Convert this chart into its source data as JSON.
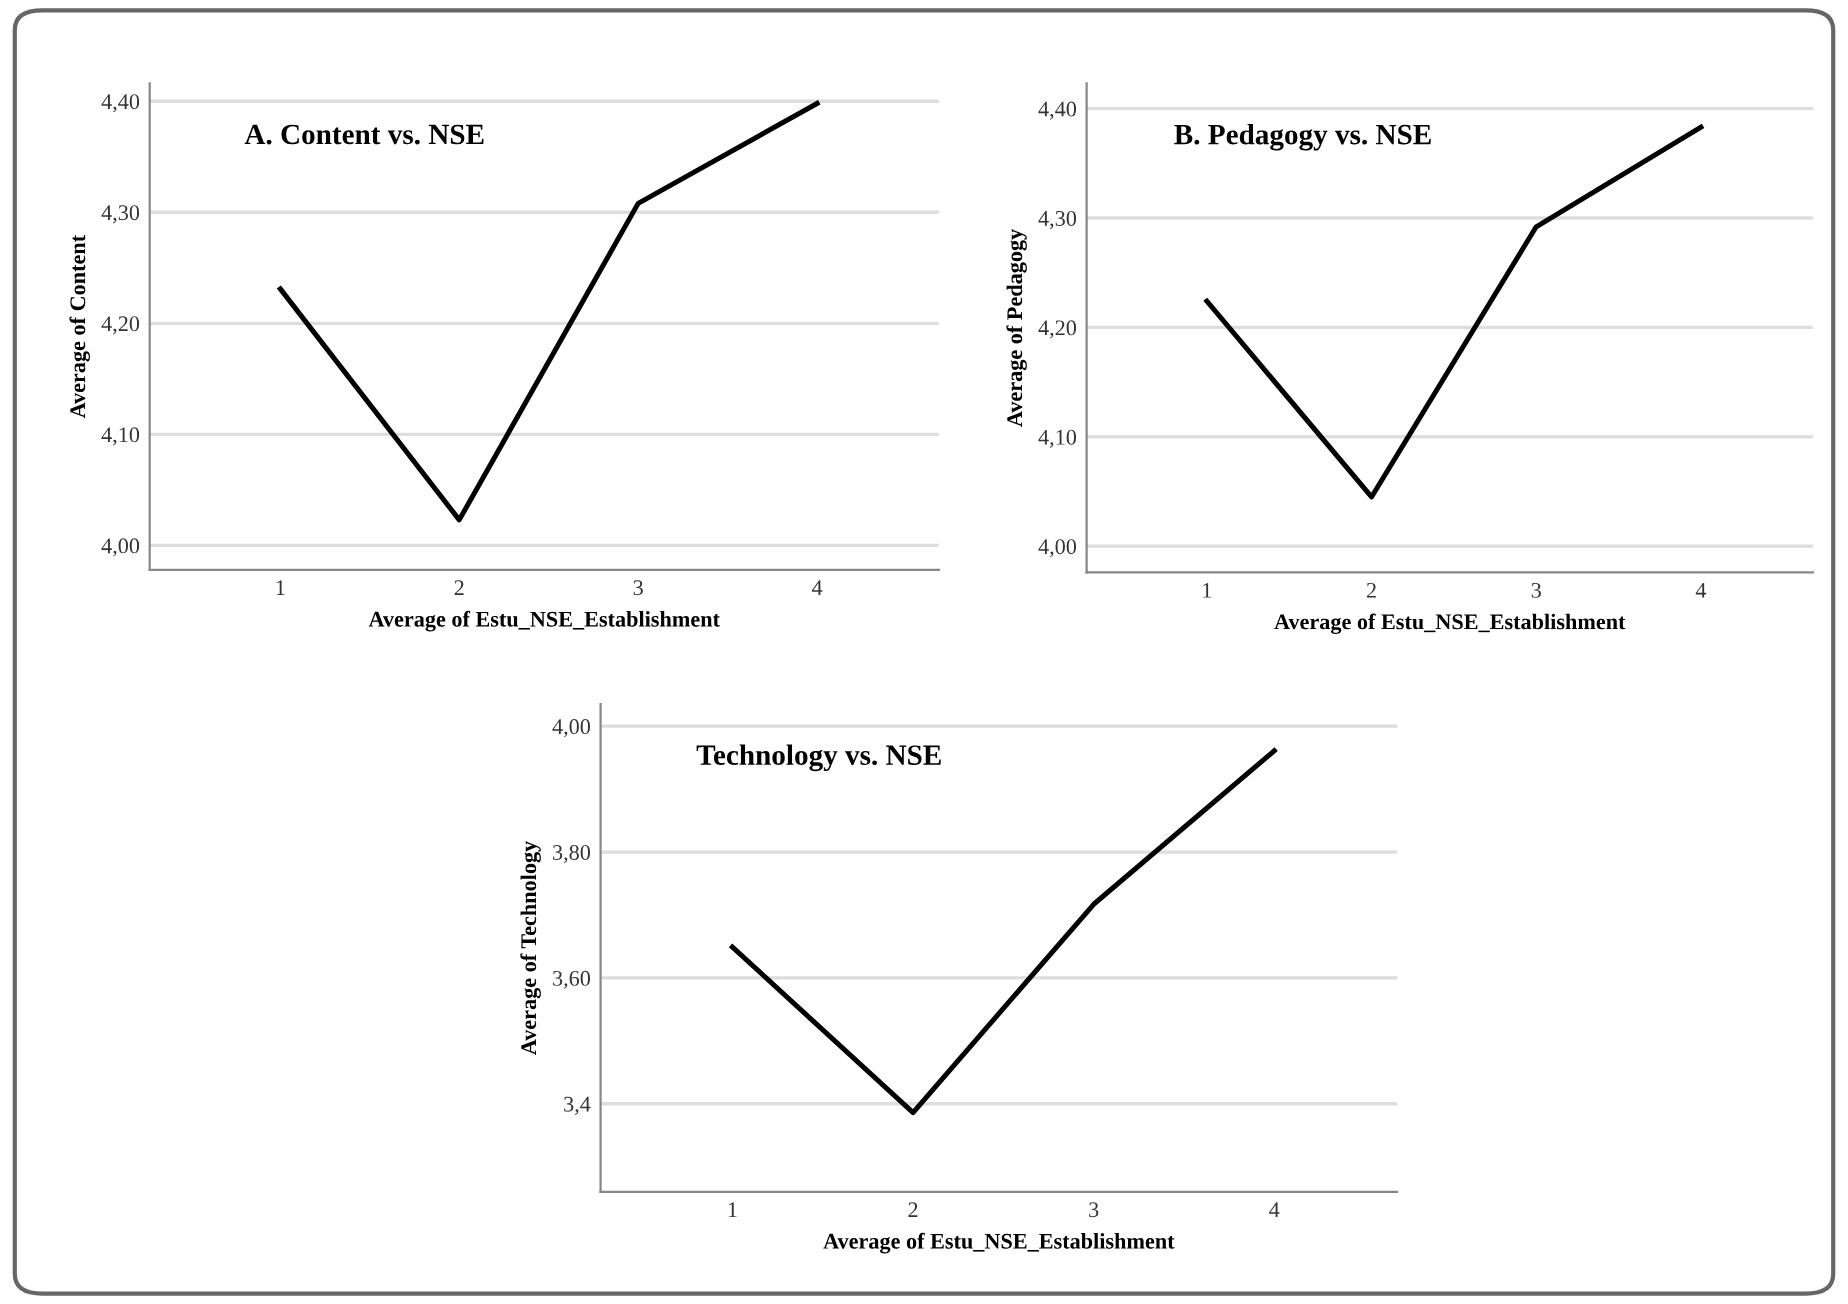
{
  "chart_data": [
    {
      "type": "line",
      "title": "A. Content vs. NSE",
      "xlabel": "Average of Estu_NSE_Establishment",
      "ylabel": "Average of Content",
      "categories": [
        "1",
        "2",
        "3",
        "4"
      ],
      "series": [
        {
          "color": "#000000",
          "values": [
            4.231,
            4.023,
            4.308,
            4.398
          ]
        }
      ],
      "ylim": [
        3.978,
        4.416
      ],
      "yticks": [
        {
          "value": 4.0,
          "label": "4,00"
        },
        {
          "value": 4.1,
          "label": "4,10"
        },
        {
          "value": 4.2,
          "label": "4,20"
        },
        {
          "value": 4.3,
          "label": "4,30"
        },
        {
          "value": 4.4,
          "label": "4,40"
        }
      ],
      "grid": "y"
    },
    {
      "type": "line",
      "title": "B. Pedagogy vs. NSE",
      "xlabel": "Average of Estu_NSE_Establishment",
      "ylabel": "Average of Pedagogy",
      "categories": [
        "1",
        "2",
        "3",
        "4"
      ],
      "series": [
        {
          "color": "#000000",
          "values": [
            4.224,
            4.045,
            4.292,
            4.383
          ]
        }
      ],
      "ylim": [
        3.976,
        4.423
      ],
      "yticks": [
        {
          "value": 4.0,
          "label": "4,00"
        },
        {
          "value": 4.1,
          "label": "4,10"
        },
        {
          "value": 4.2,
          "label": "4,20"
        },
        {
          "value": 4.3,
          "label": "4,30"
        },
        {
          "value": 4.4,
          "label": "4,40"
        }
      ],
      "grid": "y"
    },
    {
      "type": "line",
      "title": "Technology vs. NSE",
      "xlabel": "Average of Estu_NSE_Establishment",
      "ylabel": "Average of Technology",
      "categories": [
        "1",
        "2",
        "3",
        "4"
      ],
      "series": [
        {
          "color": "#000000",
          "values": [
            3.649,
            3.386,
            3.717,
            3.961
          ]
        }
      ],
      "ylim": [
        3.26,
        4.035
      ],
      "yticks": [
        {
          "value": 3.4,
          "label": "3,4"
        },
        {
          "value": 3.6,
          "label": "3,60"
        },
        {
          "value": 3.8,
          "label": "3,80"
        },
        {
          "value": 4.0,
          "label": "4,00"
        }
      ],
      "grid": "y"
    }
  ]
}
